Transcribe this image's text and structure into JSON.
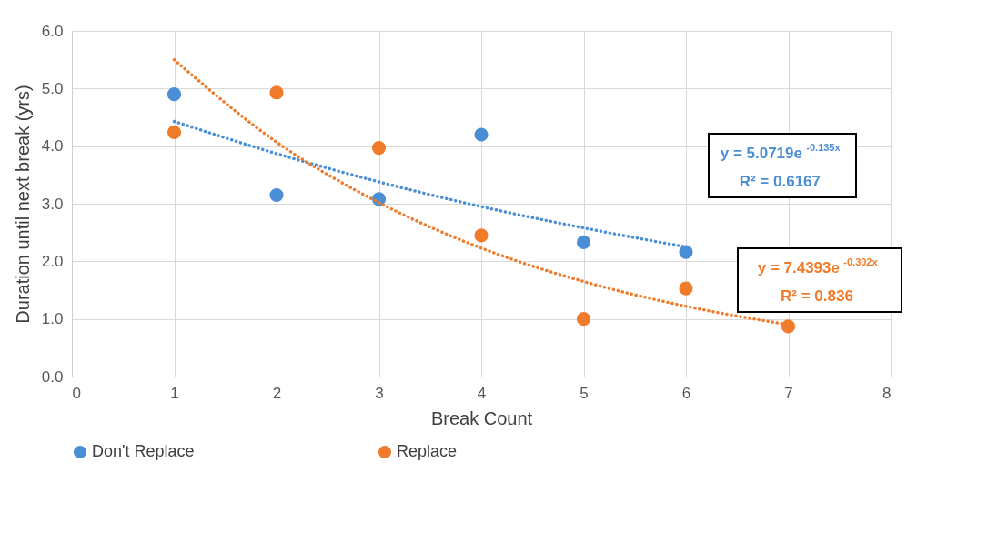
{
  "chart_data": {
    "type": "scatter",
    "xlabel": "Break Count",
    "ylabel": "Duration until next break (yrs)",
    "series": [
      {
        "name": "Don't Replace",
        "color": "#4a8fd6",
        "x": [
          1,
          2,
          3,
          4,
          5,
          6
        ],
        "values": [
          4.9,
          3.15,
          3.08,
          4.2,
          2.33,
          2.16
        ]
      },
      {
        "name": "Replace",
        "color": "#f07b2a",
        "x": [
          1,
          2,
          3,
          4,
          5,
          6,
          7
        ],
        "values": [
          4.24,
          4.93,
          3.97,
          2.45,
          1.0,
          1.53,
          0.87
        ]
      },
      {
        "type": "line",
        "marker": "none",
        "color": "#4a8fd6",
        "line_style": "dotted",
        "x": [
          1,
          2,
          3,
          4,
          5,
          6
        ],
        "values": [
          4.43,
          3.87,
          3.38,
          2.95,
          2.58,
          2.25
        ]
      },
      {
        "type": "line",
        "marker": "none",
        "color": "#f07b2a",
        "line_style": "dotted",
        "x": [
          1,
          2,
          3,
          4,
          5,
          6,
          7
        ],
        "values": [
          5.5,
          4.07,
          3.02,
          2.23,
          1.65,
          1.22,
          0.9
        ]
      }
    ],
    "annotations": [
      "y = 5.0719e$^{-0.135x}$",
      "R² = 0.6167",
      "y = 7.4393e$^{-0.302x}$",
      "R² = 0.836"
    ],
    "xlim": [
      0,
      8
    ],
    "xticks": [
      0,
      1,
      2,
      3,
      4,
      5,
      6,
      7,
      8
    ],
    "ylim": [
      0,
      6
    ],
    "yticks": [
      {
        "value": 0,
        "label": "0.0"
      },
      {
        "value": 1,
        "label": "1.0"
      },
      {
        "value": 2,
        "label": "2.0"
      },
      {
        "value": 3,
        "label": "3.0"
      },
      {
        "value": 4,
        "label": "4.0"
      },
      {
        "value": 5,
        "label": "5.0"
      },
      {
        "value": 6,
        "label": "6.0"
      }
    ],
    "grid": true,
    "legend": "bottom",
    "marker": "circle"
  }
}
